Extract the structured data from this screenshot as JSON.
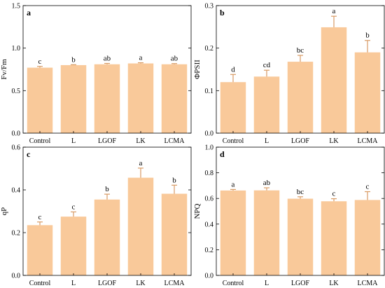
{
  "colors": {
    "bar": "#F9C99A",
    "axis": "#000000",
    "error_bar": "#D89A63"
  },
  "chart_data": [
    {
      "type": "bar",
      "panel": "a",
      "ylabel": "Fv/Fm",
      "categories": [
        "Control",
        "L",
        "LGOF",
        "LK",
        "LCMA"
      ],
      "values": [
        0.77,
        0.8,
        0.81,
        0.82,
        0.81
      ],
      "errors": [
        0.015,
        0.005,
        0.01,
        0.008,
        0.008
      ],
      "letters": [
        "c",
        "b",
        "ab",
        "a",
        "ab"
      ],
      "ylim": [
        0,
        1.5
      ],
      "yticks": [
        0.0,
        0.5,
        1.0,
        1.5
      ],
      "ytick_labels": [
        "0.0",
        "0.5",
        "1.0",
        "1.5"
      ],
      "grid": false
    },
    {
      "type": "bar",
      "panel": "b",
      "ylabel": "ΦPSII",
      "categories": [
        "Control",
        "L",
        "LGOF",
        "LK",
        "LCMA"
      ],
      "values": [
        0.12,
        0.133,
        0.168,
        0.249,
        0.19
      ],
      "errors": [
        0.018,
        0.015,
        0.015,
        0.026,
        0.028
      ],
      "letters": [
        "d",
        "cd",
        "bc",
        "a",
        "b"
      ],
      "ylim": [
        0,
        0.3
      ],
      "yticks": [
        0.0,
        0.1,
        0.2,
        0.3
      ],
      "ytick_labels": [
        "0.0",
        "0.1",
        "0.2",
        "0.3"
      ],
      "grid": false
    },
    {
      "type": "bar",
      "panel": "c",
      "ylabel": "qP",
      "categories": [
        "Control",
        "L",
        "LGOF",
        "LK",
        "LCMA"
      ],
      "values": [
        0.235,
        0.275,
        0.355,
        0.457,
        0.382
      ],
      "errors": [
        0.015,
        0.022,
        0.025,
        0.045,
        0.04
      ],
      "letters": [
        "c",
        "c",
        "b",
        "a",
        "b"
      ],
      "ylim": [
        0,
        0.6
      ],
      "yticks": [
        0.0,
        0.2,
        0.4,
        0.6
      ],
      "ytick_labels": [
        "0.0",
        "0.2",
        "0.4",
        "0.6"
      ],
      "grid": false
    },
    {
      "type": "bar",
      "panel": "d",
      "ylabel": "NPQ",
      "categories": [
        "Control",
        "L",
        "LGOF",
        "LK",
        "LCMA"
      ],
      "values": [
        0.662,
        0.663,
        0.598,
        0.578,
        0.588
      ],
      "errors": [
        0.008,
        0.02,
        0.015,
        0.02,
        0.065
      ],
      "letters": [
        "a",
        "ab",
        "bc",
        "c",
        "c"
      ],
      "ylim": [
        0,
        1.0
      ],
      "yticks": [
        0.0,
        0.2,
        0.4,
        0.6,
        0.8,
        1.0
      ],
      "ytick_labels": [
        "0.0",
        "0.2",
        "0.4",
        "0.6",
        "0.8",
        "1.0"
      ],
      "grid": false
    }
  ]
}
